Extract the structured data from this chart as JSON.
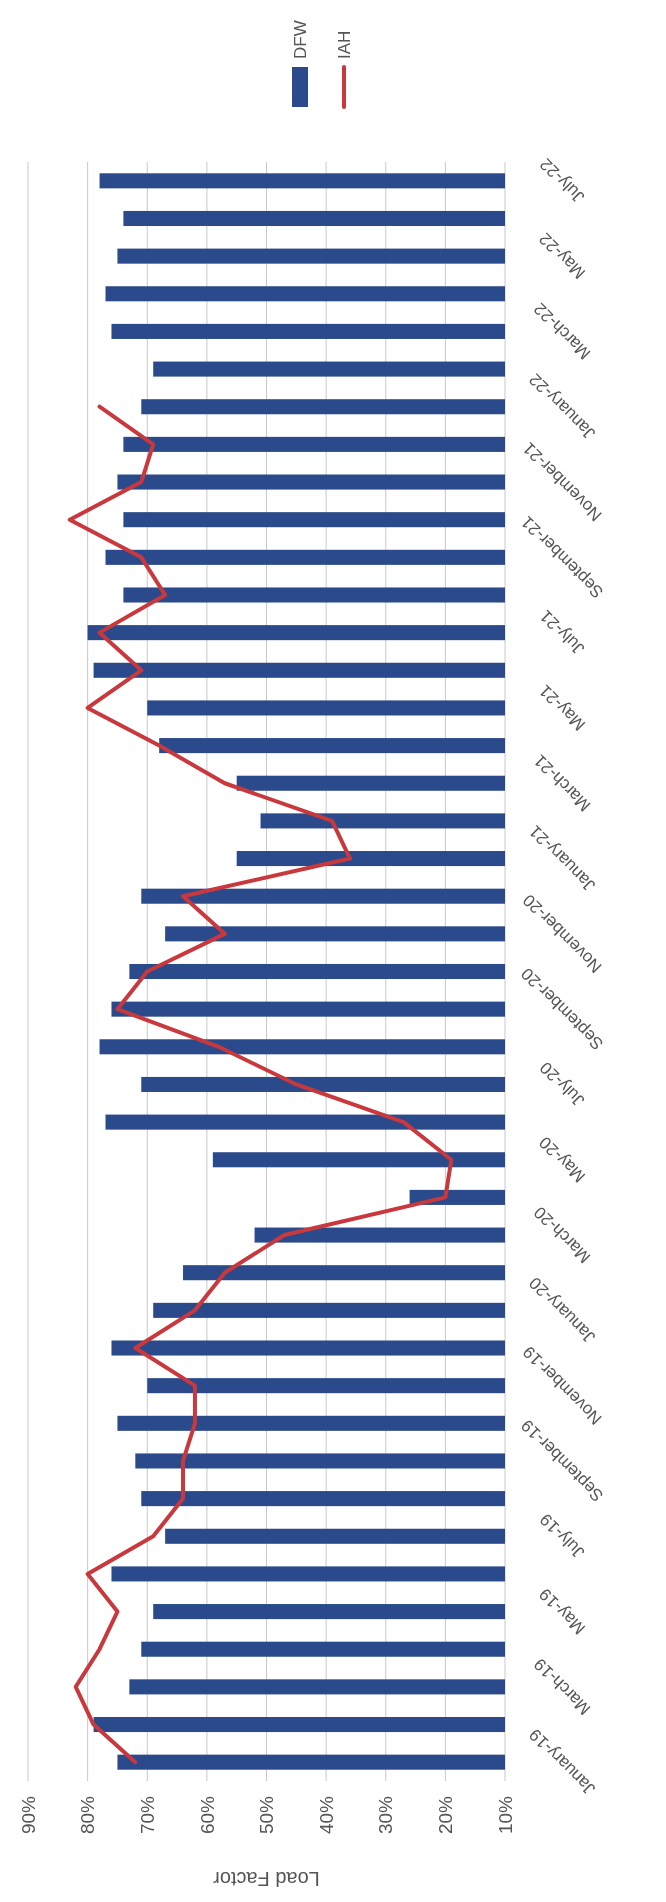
{
  "chart_data": {
    "type": "bar",
    "orientation": "horizontal",
    "xlabel": "Load Factor",
    "categories": [
      "July-22",
      null,
      "May-22",
      null,
      "March-22",
      null,
      "January-22",
      null,
      "November-21",
      null,
      "September-21",
      null,
      "July-21",
      null,
      "May-21",
      null,
      "March-21",
      null,
      "January-21",
      null,
      "November-20",
      null,
      "September-20",
      null,
      "July-20",
      null,
      "May-20",
      null,
      "March-20",
      null,
      "January-20",
      null,
      "November-19",
      null,
      "September-19",
      null,
      "July-19",
      null,
      "May-19",
      null,
      "March-19",
      null,
      "January-19"
    ],
    "series": [
      {
        "name": "DFW",
        "color": "#2b4a8b",
        "values": [
          78,
          74,
          75,
          77,
          76,
          69,
          71,
          74,
          75,
          74,
          77,
          74,
          80,
          79,
          70,
          68,
          55,
          51,
          55,
          71,
          67,
          73,
          76,
          78,
          71,
          77,
          59,
          26,
          52,
          64,
          69,
          76,
          70,
          75,
          72,
          71,
          67,
          76,
          69,
          71,
          73,
          79,
          75
        ]
      },
      {
        "name": "IAH",
        "type": "line",
        "color": "#c8383d",
        "values": [
          null,
          null,
          null,
          null,
          null,
          null,
          78,
          69,
          71,
          83,
          71,
          67,
          78,
          71,
          80,
          68,
          57,
          39,
          36,
          64,
          57,
          70,
          75,
          58,
          45,
          27,
          19,
          20,
          47,
          57,
          62,
          72,
          62,
          62,
          64,
          64,
          69,
          80,
          75,
          78,
          82,
          79,
          72
        ]
      }
    ],
    "xlim": [
      90,
      10
    ],
    "xticks": [
      {
        "value": 90,
        "label": "90%"
      },
      {
        "value": 80,
        "label": "80%"
      },
      {
        "value": 70,
        "label": "70%"
      },
      {
        "value": 60,
        "label": "60%"
      },
      {
        "value": 50,
        "label": "50%"
      },
      {
        "value": 40,
        "label": "40%"
      },
      {
        "value": 30,
        "label": "30%"
      },
      {
        "value": 20,
        "label": "20%"
      },
      {
        "value": 10,
        "label": "10%"
      }
    ],
    "grid": "x",
    "legend": "top",
    "marker": "none",
    "line_style": "solid"
  }
}
